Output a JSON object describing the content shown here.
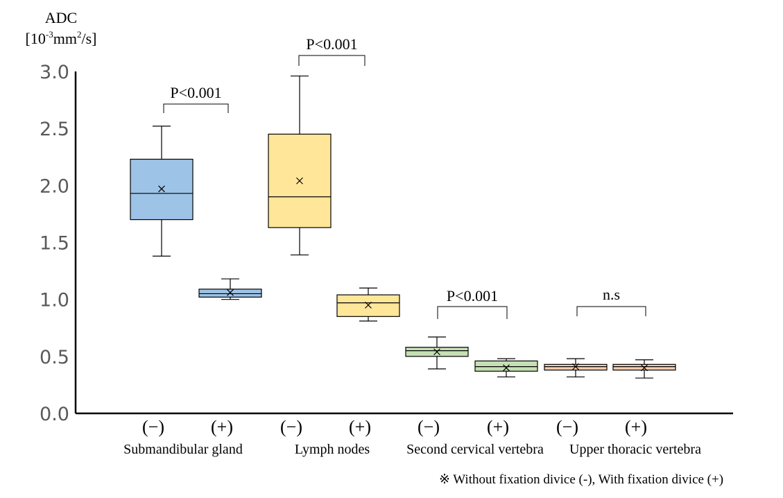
{
  "chart_data": {
    "type": "box",
    "ylabel_line1": "ADC",
    "ylabel_unit_prefix": "[10",
    "ylabel_unit_exp": "-3",
    "ylabel_unit_mid": "mm",
    "ylabel_unit_exp2": "2",
    "ylabel_unit_suffix": "/s]",
    "ylim": [
      0,
      3.0
    ],
    "yticks": [
      "0.0",
      "0.5",
      "1.0",
      "1.5",
      "2.0",
      "2.5",
      "3.0"
    ],
    "ytick_values": [
      0,
      0.5,
      1.0,
      1.5,
      2.0,
      2.5,
      3.0
    ],
    "groups": [
      "Submandibular gland",
      "Lymph nodes",
      "Second cervical vertebra",
      "Upper thoracic vertebra"
    ],
    "condition_labels": [
      "(−)",
      "(+)"
    ],
    "boxes": [
      {
        "group": "Submandibular gland",
        "condition": "(−)",
        "min": 1.38,
        "q1": 1.7,
        "median": 1.93,
        "q3": 2.23,
        "max": 2.52,
        "mean": 1.97,
        "color": "#9dc3e6"
      },
      {
        "group": "Submandibular gland",
        "condition": "(+)",
        "min": 1.0,
        "q1": 1.02,
        "median": 1.05,
        "q3": 1.09,
        "max": 1.18,
        "mean": 1.06,
        "color": "#9dc3e6"
      },
      {
        "group": "Lymph nodes",
        "condition": "(−)",
        "min": 1.39,
        "q1": 1.63,
        "median": 1.9,
        "q3": 2.45,
        "max": 2.96,
        "mean": 2.04,
        "color": "#ffe699"
      },
      {
        "group": "Lymph nodes",
        "condition": "(+)",
        "min": 0.81,
        "q1": 0.85,
        "median": 0.97,
        "q3": 1.04,
        "max": 1.1,
        "mean": 0.95,
        "color": "#ffe699"
      },
      {
        "group": "Second cervical vertebra",
        "condition": "(−)",
        "min": 0.39,
        "q1": 0.5,
        "median": 0.55,
        "q3": 0.58,
        "max": 0.67,
        "mean": 0.54,
        "color": "#c5e0b4"
      },
      {
        "group": "Second cervical vertebra",
        "condition": "(+)",
        "min": 0.32,
        "q1": 0.37,
        "median": 0.41,
        "q3": 0.46,
        "max": 0.48,
        "mean": 0.4,
        "color": "#c5e0b4"
      },
      {
        "group": "Upper thoracic vertebra",
        "condition": "(−)",
        "min": 0.32,
        "q1": 0.38,
        "median": 0.41,
        "q3": 0.43,
        "max": 0.48,
        "mean": 0.41,
        "color": "#f8cbad"
      },
      {
        "group": "Upper thoracic vertebra",
        "condition": "(+)",
        "min": 0.31,
        "q1": 0.38,
        "median": 0.41,
        "q3": 0.43,
        "max": 0.47,
        "mean": 0.4,
        "color": "#f8cbad"
      }
    ],
    "significance": [
      {
        "group": "Submandibular gland",
        "label": "P<0.001"
      },
      {
        "group": "Lymph nodes",
        "label": "P<0.001"
      },
      {
        "group": "Second cervical vertebra",
        "label": "P<0.001"
      },
      {
        "group": "Upper thoracic vertebra",
        "label": "n.s"
      }
    ],
    "footnote": "※ Without fixation divice (-), With fixation divice (+)",
    "colors": {
      "submandibular": "#9dc3e6",
      "lymph": "#ffe699",
      "cervical": "#c5e0b4",
      "thoracic": "#f8cbad",
      "axis": "#000000",
      "tick_text": "#595959"
    }
  }
}
